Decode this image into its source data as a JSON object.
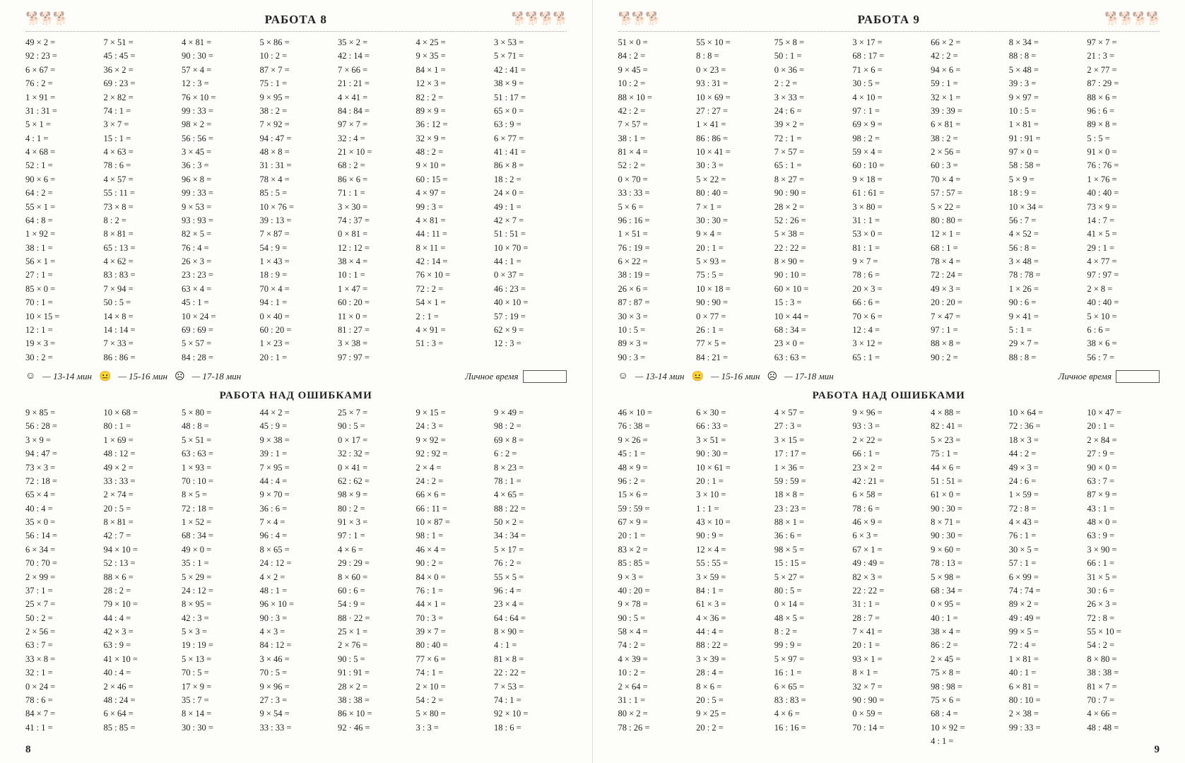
{
  "left": {
    "title": "РАБОТА 8",
    "subtitle": "РАБОТА НАД ОШИБКАМИ",
    "pageNum": "8",
    "main": [
      [
        "49 × 2 =",
        "92 : 23 =",
        "6 × 67 =",
        "76 : 2 =",
        "1 × 91 =",
        "31 : 31 =",
        "5 × 1 =",
        "4 : 1 =",
        "4 × 68 =",
        "52 : 1 =",
        "90 × 6 =",
        "64 : 2 =",
        "55 × 1 =",
        "64 : 8 =",
        "1 × 92 =",
        "38 : 1 =",
        "56 × 1 =",
        "27 : 1 =",
        "85 × 0 =",
        "70 : 1 =",
        "10 × 15 =",
        "12 : 1 =",
        "19 × 3 =",
        "30 : 2 ="
      ],
      [
        "7 × 51 =",
        "45 : 45 =",
        "36 × 2 =",
        "69 : 23 =",
        "2 × 82 =",
        "74 : 1 =",
        "3 × 7 =",
        "15 : 1 =",
        "4 × 63 =",
        "78 : 6 =",
        "4 × 57 =",
        "55 : 11 =",
        "73 × 8 =",
        "8 : 2 =",
        "8 × 81 =",
        "65 : 13 =",
        "4 × 62 =",
        "83 : 83 =",
        "7 × 94 =",
        "50 : 5 =",
        "14 × 8 =",
        "14 : 14 =",
        "7 × 33 =",
        "86 : 86 ="
      ],
      [
        "4 × 81 =",
        "90 : 30 =",
        "57 × 4 =",
        "12 : 3 =",
        "76 × 10 =",
        "99 : 33 =",
        "98 × 2 =",
        "56 : 56 =",
        "3 × 45 =",
        "36 : 3 =",
        "96 × 8 =",
        "99 : 33 =",
        "9 × 53 =",
        "93 : 93 =",
        "82 × 5 =",
        "76 : 4 =",
        "26 × 3 =",
        "23 : 23 =",
        "63 × 4 =",
        "45 : 1 =",
        "10 × 24 =",
        "69 : 69 =",
        "5 × 57 =",
        "84 : 28 ="
      ],
      [
        "5 × 86 =",
        "10 : 2 =",
        "87 × 7 =",
        "75 : 1 =",
        "9 × 95 =",
        "38 : 2 =",
        "7 × 92 =",
        "94 : 47 =",
        "48 × 8 =",
        "31 : 31 =",
        "78 × 4 =",
        "85 : 5 =",
        "10 × 76 =",
        "39 : 13 =",
        "7 × 87 =",
        "54 : 9 =",
        "1 × 43 =",
        "18 : 9 =",
        "70 × 4 =",
        "94 : 1 =",
        "0 × 40 =",
        "60 : 20 =",
        "1 × 23 =",
        "20 : 1 ="
      ],
      [
        "35 × 2 =",
        "42 : 14 =",
        "7 × 66 =",
        "21 : 21 =",
        "4 × 41 =",
        "84 : 84 =",
        "97 × 7 =",
        "32 : 4 =",
        "21 × 10 =",
        "68 : 2 =",
        "86 × 6 =",
        "71 : 1 =",
        "3 × 30 =",
        "74 : 37 =",
        "0 × 81 =",
        "12 : 12 =",
        "38 × 4 =",
        "10 : 1 =",
        "1 × 47 =",
        "60 : 20 =",
        "11 × 0 =",
        "81 : 27 =",
        "3 × 38 =",
        "97 : 97 ="
      ],
      [
        "4 × 25 =",
        "9 × 35 =",
        "84 × 1 =",
        "12 × 3 =",
        "82 : 2 =",
        "89 × 9 =",
        "36 : 12 =",
        "32 × 9 =",
        "48 : 2 =",
        "9 × 10 =",
        "60 : 15 =",
        "4 × 97 =",
        "99 : 3 =",
        "4 × 81 =",
        "44 : 11 =",
        "8 × 11 =",
        "42 : 14 =",
        "76 × 10 =",
        "72 : 2 =",
        "54 × 1 =",
        "2 : 1 =",
        "4 × 91 =",
        "51 : 3 ="
      ],
      [
        "3 × 53 =",
        "5 × 71 =",
        "42 : 41 =",
        "38 × 9 =",
        "51 : 17 =",
        "65 × 0 =",
        "63 : 9 =",
        "6 × 77 =",
        "41 : 41 =",
        "86 × 8 =",
        "18 : 2 =",
        "24 × 0 =",
        "49 : 1 =",
        "42 × 7 =",
        "51 : 51 =",
        "10 × 70 =",
        "44 : 1 =",
        "0 × 37 =",
        "46 : 23 =",
        "40 × 10 =",
        "57 : 19 =",
        "62 × 9 =",
        "12 : 3 ="
      ]
    ],
    "errors": [
      [
        "9 × 85 =",
        "56 : 28 =",
        "3 × 9 =",
        "94 : 47 =",
        "73 × 3 =",
        "72 : 18 =",
        "65 × 4 =",
        "40 : 4 =",
        "35 × 0 =",
        "56 : 14 =",
        "6 × 34 =",
        "70 : 70 =",
        "2 × 99 =",
        "37 : 1 =",
        "25 × 7 =",
        "50 : 2 =",
        "2 × 56 =",
        "63 : 7 =",
        "33 × 8 =",
        "32 : 1 =",
        "0 × 24 =",
        "78 : 6 =",
        "84 × 7 =",
        "41 : 1 ="
      ],
      [
        "10 × 68 =",
        "80 : 1 =",
        "1 × 69 =",
        "48 : 12 =",
        "49 × 2 =",
        "33 : 33 =",
        "2 × 74 =",
        "20 : 5 =",
        "8 × 81 =",
        "42 : 7 =",
        "94 × 10 =",
        "52 : 13 =",
        "88 × 6 =",
        "28 : 2 =",
        "79 × 10 =",
        "44 : 4 =",
        "42 × 3 =",
        "63 : 9 =",
        "41 × 10 =",
        "40 : 4 =",
        "2 × 46 =",
        "48 : 24 =",
        "6 × 64 =",
        "85 : 85 ="
      ],
      [
        "5 × 80 =",
        "48 : 8 =",
        "5 × 51 =",
        "63 : 63 =",
        "1 × 93 =",
        "70 : 10 =",
        "8 × 5 =",
        "72 : 18 =",
        "1 × 52 =",
        "68 : 34 =",
        "49 × 0 =",
        "35 : 1 =",
        "5 × 29 =",
        "24 : 12 =",
        "8 × 95 =",
        "42 : 3 =",
        "5 × 3 =",
        "19 : 19 =",
        "5 × 13 =",
        "70 : 5 =",
        "17 × 9 =",
        "35 : 7 =",
        "8 × 14 =",
        "30 : 30 ="
      ],
      [
        "44 × 2 =",
        "45 : 9 =",
        "9 × 38 =",
        "39 : 1 =",
        "7 × 95 =",
        "44 : 4 =",
        "9 × 70 =",
        "36 : 6 =",
        "7 × 4 =",
        "96 : 4 =",
        "8 × 65 =",
        "24 : 12 =",
        "4 × 2 =",
        "48 : 1 =",
        "96 × 10 =",
        "90 : 3 =",
        "4 × 3 =",
        "84 : 12 =",
        "3 × 46 =",
        "70 : 5 =",
        "9 × 96 =",
        "27 : 3 =",
        "9 × 54 =",
        "33 : 33 ="
      ],
      [
        "25 × 7 =",
        "90 : 5 =",
        "0 × 17 =",
        "32 : 32 =",
        "0 × 41 =",
        "62 : 62 =",
        "98 × 9 =",
        "80 : 2 =",
        "91 × 3 =",
        "97 : 1 =",
        "4 × 6 =",
        "29 : 29 =",
        "8 × 60 =",
        "60 : 6 =",
        "54 : 9 =",
        "88 · 22 =",
        "25 × 1 =",
        "2 × 76 =",
        "90 : 5 =",
        "91 : 91 =",
        "28 × 2 =",
        "38 : 38 =",
        "86 × 10 =",
        "92 · 46 ="
      ],
      [
        "9 × 15 =",
        "24 : 3 =",
        "9 × 92 =",
        "92 : 92 =",
        "2 × 4 =",
        "24 : 2 =",
        "66 × 6 =",
        "66 : 11 =",
        "10 × 87 =",
        "98 : 1 =",
        "46 × 4 =",
        "90 : 2 =",
        "84 × 0 =",
        "76 : 1 =",
        "44 × 1 =",
        "70 : 3 =",
        "39 × 7 =",
        "80 : 40 =",
        "77 × 6 =",
        "74 : 1 =",
        "2 × 10 =",
        "54 : 2 =",
        "5 × 80 =",
        "3 : 3 ="
      ],
      [
        "9 × 49 =",
        "98 : 2 =",
        "69 × 8 =",
        "6 : 2 =",
        "8 × 23 =",
        "78 : 1 =",
        "4 × 65 =",
        "88 : 22 =",
        "50 × 2 =",
        "34 : 34 =",
        "5 × 17 =",
        "76 : 2 =",
        "55 × 5 =",
        "96 : 4 =",
        "23 × 4 =",
        "64 : 64 =",
        "8 × 90 =",
        "4 : 1 =",
        "81 × 8 =",
        "22 : 22 =",
        "7 × 53 =",
        "74 : 1 =",
        "92 × 10 =",
        "18 : 6 ="
      ]
    ]
  },
  "right": {
    "title": "РАБОТА 9",
    "subtitle": "РАБОТА НАД ОШИБКАМИ",
    "pageNum": "9",
    "main": [
      [
        "51 × 0 =",
        "84 : 2 =",
        "9 × 45 =",
        "10 : 2 =",
        "88 × 10 =",
        "42 : 2 =",
        "7 × 57 =",
        "38 : 1 =",
        "81 × 4 =",
        "52 : 2 =",
        "0 × 70 =",
        "33 : 33 =",
        "5 × 6 =",
        "96 : 16 =",
        "1 × 51 =",
        "76 : 19 =",
        "6 × 22 =",
        "38 : 19 =",
        "26 × 6 =",
        "87 : 87 =",
        "30 × 3 =",
        "10 : 5 =",
        "89 × 3 =",
        "90 : 3 ="
      ],
      [
        "55 × 10 =",
        "8 : 8 =",
        "0 × 23 =",
        "93 : 31 =",
        "10 × 69 =",
        "27 : 27 =",
        "1 × 41 =",
        "86 : 86 =",
        "10 × 41 =",
        "30 : 3 =",
        "5 × 22 =",
        "80 : 40 =",
        "7 × 1 =",
        "30 : 30 =",
        "9 × 4 =",
        "20 : 1 =",
        "5 × 93 =",
        "75 : 5 =",
        "10 × 18 =",
        "90 : 90 =",
        "0 × 77 =",
        "26 : 1 =",
        "77 × 5 =",
        "84 : 21 ="
      ],
      [
        "75 × 8 =",
        "50 : 1 =",
        "0 × 36 =",
        "2 : 2 =",
        "3 × 33 =",
        "24 : 6 =",
        "39 × 2 =",
        "72 : 1 =",
        "7 × 57 =",
        "65 : 1 =",
        "8 × 27 =",
        "90 : 90 =",
        "28 × 2 =",
        "52 : 26 =",
        "5 × 38 =",
        "22 : 22 =",
        "8 × 90 =",
        "90 : 10 =",
        "60 × 10 =",
        "15 : 3 =",
        "10 × 44 =",
        "68 : 34 =",
        "23 × 0 =",
        "63 : 63 ="
      ],
      [
        "3 × 17 =",
        "68 : 17 =",
        "71 × 6 =",
        "30 : 5 =",
        "4 × 10 =",
        "97 : 1 =",
        "69 × 9 =",
        "98 : 2 =",
        "59 × 4 =",
        "60 : 10 =",
        "9 × 18 =",
        "61 : 61 =",
        "3 × 80 =",
        "31 : 1 =",
        "53 × 0 =",
        "81 : 1 =",
        "9 × 7 =",
        "78 : 6 =",
        "20 × 3 =",
        "66 : 6 =",
        "70 × 6 =",
        "12 : 4 =",
        "3 × 12 =",
        "65 : 1 ="
      ],
      [
        "66 × 2 =",
        "42 : 2 =",
        "94 × 6 =",
        "59 : 1 =",
        "32 × 1 =",
        "39 : 39 =",
        "6 × 81 =",
        "38 : 2 =",
        "2 × 56 =",
        "60 : 3 =",
        "70 × 4 =",
        "57 : 57 =",
        "5 × 22 =",
        "80 : 80 =",
        "12 × 1 =",
        "68 : 1 =",
        "78 × 4 =",
        "72 : 24 =",
        "49 × 3 =",
        "20 : 20 =",
        "7 × 47 =",
        "97 : 1 =",
        "88 × 8 =",
        "90 : 2 ="
      ],
      [
        "8 × 34 =",
        "88 : 8 =",
        "5 × 48 =",
        "39 : 3 =",
        "9 × 97 =",
        "10 : 5 =",
        "1 × 81 =",
        "91 : 91 =",
        "97 × 0 =",
        "58 : 58 =",
        "5 × 9 =",
        "18 : 9 =",
        "10 × 34 =",
        "56 : 7 =",
        "4 × 52 =",
        "56 : 8 =",
        "3 × 48 =",
        "78 : 78 =",
        "1 × 26 =",
        "90 : 6 =",
        "9 × 41 =",
        "5 : 1 =",
        "29 × 7 =",
        "88 : 8 ="
      ],
      [
        "97 × 7 =",
        "21 : 3 =",
        "2 × 77 =",
        "87 : 29 =",
        "88 × 6 =",
        "96 : 6 =",
        "89 × 8 =",
        "5 : 5 =",
        "91 × 0 =",
        "76 : 76 =",
        "1 × 76 =",
        "40 : 40 =",
        "73 × 9 =",
        "14 : 7 =",
        "41 × 5 =",
        "29 : 1 =",
        "4 × 77 =",
        "97 : 97 =",
        "2 × 8 =",
        "40 : 40 =",
        "5 × 10 =",
        "6 : 6 =",
        "38 × 6 =",
        "56 : 7 ="
      ]
    ],
    "errors": [
      [
        "46 × 10 =",
        "76 : 38 =",
        "9 × 26 =",
        "45 : 1 =",
        "48 × 9 =",
        "96 : 2 =",
        "15 × 6 =",
        "59 : 59 =",
        "67 × 9 =",
        "20 : 1 =",
        "83 × 2 =",
        "85 : 85 =",
        "9 × 3 =",
        "40 : 20 =",
        "9 × 78 =",
        "90 : 5 =",
        "58 × 4 =",
        "74 : 2 =",
        "4 × 39 =",
        "10 : 2 =",
        "2 × 64 =",
        "31 : 1 =",
        "80 × 2 =",
        "78 : 26 ="
      ],
      [
        "6 × 30 =",
        "66 : 33 =",
        "3 × 51 =",
        "90 : 30 =",
        "10 × 61 =",
        "20 : 1 =",
        "3 × 10 =",
        "1 : 1 =",
        "43 × 10 =",
        "90 : 9 =",
        "12 × 4 =",
        "55 : 55 =",
        "3 × 59 =",
        "84 : 1 =",
        "61 × 3 =",
        "4 × 36 =",
        "44 : 4 =",
        "88 : 22 =",
        "3 × 39 =",
        "28 : 4 =",
        "8 × 6 =",
        "20 : 5 =",
        "9 × 25 =",
        "20 : 2 ="
      ],
      [
        "4 × 57 =",
        "27 : 3 =",
        "3 × 15 =",
        "17 : 17 =",
        "1 × 36 =",
        "59 : 59 =",
        "18 × 8 =",
        "23 : 23 =",
        "88 × 1 =",
        "36 : 6 =",
        "98 × 5 =",
        "15 : 15 =",
        "5 × 27 =",
        "80 : 5 =",
        "0 × 14 =",
        "48 × 5 =",
        "8 : 2 =",
        "99 : 9 =",
        "5 × 97 =",
        "16 : 1 =",
        "6 × 65 =",
        "83 : 83 =",
        "4 × 6 =",
        "16 : 16 ="
      ],
      [
        "9 × 96 =",
        "93 : 3 =",
        "2 × 22 =",
        "66 : 1 =",
        "23 × 2 =",
        "42 : 21 =",
        "6 × 58 =",
        "78 : 6 =",
        "46 × 9 =",
        "6 × 3 =",
        "67 × 1 =",
        "49 : 49 =",
        "82 × 3 =",
        "22 : 22 =",
        "31 : 1 =",
        "28 : 7 =",
        "7 × 41 =",
        "20 : 1 =",
        "93 × 1 =",
        "8 × 1 =",
        "32 × 7 =",
        "90 : 90 =",
        "0 × 59 =",
        "70 : 14 ="
      ],
      [
        "4 × 88 =",
        "82 : 41 =",
        "5 × 23 =",
        "75 : 1 =",
        "44 × 6 =",
        "51 : 51 =",
        "61 × 0 =",
        "90 : 30 =",
        "8 × 71 =",
        "90 : 30 =",
        "9 × 60 =",
        "78 : 13 =",
        "5 × 98 =",
        "68 : 34 =",
        "0 × 95 =",
        "40 : 1 =",
        "38 × 4 =",
        "86 : 2 =",
        "2 × 45 =",
        "75 × 8 =",
        "98 : 98 =",
        "75 × 6 =",
        "68 : 4 =",
        "10 × 92 =",
        "4 : 1 ="
      ],
      [
        "10 × 64 =",
        "72 : 36 =",
        "18 × 3 =",
        "44 : 2 =",
        "49 × 3 =",
        "24 : 6 =",
        "1 × 59 =",
        "72 : 8 =",
        "4 × 43 =",
        "76 : 1 =",
        "30 × 5 =",
        "57 : 1 =",
        "6 × 99 =",
        "74 : 74 =",
        "89 × 2 =",
        "49 : 49 =",
        "99 × 5 =",
        "72 : 4 =",
        "1 × 81 =",
        "40 : 1 =",
        "6 × 81 =",
        "80 : 10 =",
        "2 × 38 =",
        "99 : 33 ="
      ],
      [
        "10 × 47 =",
        "20 : 1 =",
        "2 × 84 =",
        "27 : 9 =",
        "90 × 0 =",
        "63 : 7 =",
        "87 × 9 =",
        "43 : 1 =",
        "48 × 0 =",
        "63 : 9 =",
        "3 × 90 =",
        "66 : 1 =",
        "31 × 5 =",
        "30 : 6 =",
        "26 × 3 =",
        "72 : 8 =",
        "55 × 10 =",
        "54 : 2 =",
        "8 × 80 =",
        "38 : 38 =",
        "81 × 7 =",
        "70 : 7 =",
        "4 × 66 =",
        "48 : 48 ="
      ]
    ]
  },
  "timer": {
    "t1": "— 13-14 мин",
    "t2": "— 15-16 мин",
    "t3": "— 17-18 мин",
    "personal": "Личное время"
  }
}
